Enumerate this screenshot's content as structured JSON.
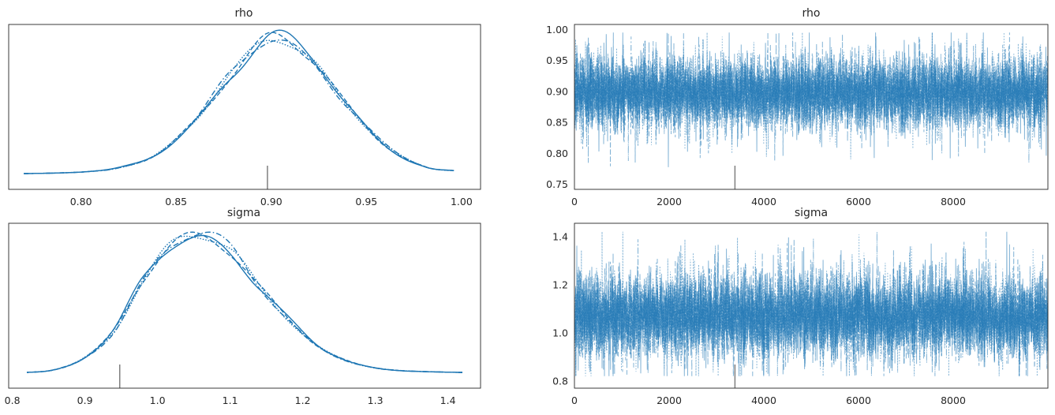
{
  "chart_data": [
    {
      "type": "line",
      "title": "rho",
      "xlabel": "",
      "ylabel": "",
      "xlim": [
        0.762,
        1.01
      ],
      "xticks": [
        "0.80",
        "0.85",
        "0.90",
        "0.95",
        "1.00"
      ],
      "yticks": [],
      "grid": false,
      "series_style": "4 chains (solid, dashed, dotted, dash-dot)",
      "color": "#1f77b4",
      "density": {
        "x": [
          0.77,
          0.8,
          0.82,
          0.84,
          0.86,
          0.88,
          0.9,
          0.92,
          0.94,
          0.96,
          0.98,
          0.996
        ],
        "y": [
          0.0,
          0.01,
          0.04,
          0.13,
          0.36,
          0.68,
          0.92,
          0.78,
          0.46,
          0.19,
          0.05,
          0.02
        ]
      },
      "rug_marker": 0.898
    },
    {
      "type": "line",
      "title": "rho",
      "xlabel": "",
      "ylabel": "",
      "xlim": [
        0,
        10000
      ],
      "ylim": [
        0.742,
        1.008
      ],
      "xticks": [
        "0",
        "2000",
        "4000",
        "6000",
        "8000"
      ],
      "yticks": [
        "0.75",
        "0.80",
        "0.85",
        "0.90",
        "0.95",
        "1.00"
      ],
      "grid": false,
      "color": "#1f77b4",
      "trace": {
        "mean": 0.898,
        "sd": 0.027,
        "min": 0.766,
        "max": 0.995,
        "draws": 10000
      },
      "marker_draw": 3390
    },
    {
      "type": "line",
      "title": "sigma",
      "xlabel": "",
      "ylabel": "",
      "xlim": [
        0.795,
        1.445
      ],
      "xticks": [
        "0.8",
        "0.9",
        "1.0",
        "1.1",
        "1.2",
        "1.3",
        "1.4"
      ],
      "yticks": [],
      "grid": false,
      "series_style": "4 chains (solid, dashed, dotted, dash-dot)",
      "color": "#1f77b4",
      "density": {
        "x": [
          0.82,
          0.86,
          0.9,
          0.94,
          0.98,
          1.02,
          1.06,
          1.1,
          1.14,
          1.18,
          1.22,
          1.26,
          1.3,
          1.34,
          1.42
        ],
        "y": [
          0.0,
          0.02,
          0.1,
          0.28,
          0.62,
          0.86,
          0.92,
          0.82,
          0.58,
          0.36,
          0.18,
          0.08,
          0.03,
          0.01,
          0.0
        ]
      },
      "rug_marker": 0.948
    },
    {
      "type": "line",
      "title": "sigma",
      "xlabel": "",
      "ylabel": "",
      "xlim": [
        0,
        10000
      ],
      "ylim": [
        0.77,
        1.455
      ],
      "xticks": [
        "0",
        "2000",
        "4000",
        "6000",
        "8000"
      ],
      "yticks": [
        "0.8",
        "1.0",
        "1.2",
        "1.4"
      ],
      "grid": false,
      "color": "#1f77b4",
      "trace": {
        "mean": 1.07,
        "sd": 0.08,
        "min": 0.82,
        "max": 1.42,
        "draws": 10000
      },
      "marker_draw": 3390
    }
  ]
}
